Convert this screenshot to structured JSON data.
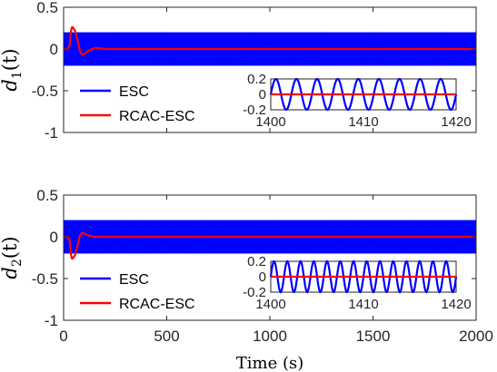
{
  "chart_data": [
    {
      "type": "line",
      "ylabel": "d",
      "ylabel_sub": "1",
      "ylabel_arg": "(t)",
      "xlabel": "",
      "xlim": [
        0,
        2000
      ],
      "ylim": [
        -1,
        0.5
      ],
      "xticks": [
        0,
        500,
        1000,
        1500,
        2000
      ],
      "yticks": [
        -1,
        -0.5,
        0,
        0.5
      ],
      "ytick_labels": [
        "-1",
        "-0.5",
        "0",
        "0.5"
      ],
      "grid": false,
      "legend_position": "lower-left",
      "series": [
        {
          "name": "ESC",
          "color": "#0000ff",
          "kind": "oscillation",
          "amplitude": 0.2,
          "offset": 0,
          "x_range": [
            0,
            2000
          ]
        },
        {
          "name": "RCAC-ESC",
          "color": "#ff0000",
          "kind": "transient",
          "x": [
            0,
            20,
            30,
            35,
            40,
            45,
            50,
            55,
            60,
            70,
            80,
            90,
            100,
            115,
            130,
            150,
            170,
            200,
            230,
            260,
            300,
            2000
          ],
          "y": [
            0,
            0,
            0.05,
            0.2,
            0.26,
            0.26,
            0.24,
            0.22,
            0.18,
            0.08,
            -0.03,
            -0.07,
            -0.06,
            -0.03,
            -0.01,
            0.01,
            0.01,
            0.0,
            0.0,
            0.0,
            0.0,
            0.0
          ]
        }
      ],
      "inset": {
        "xlim": [
          1400,
          1420
        ],
        "ylim": [
          -0.2,
          0.2
        ],
        "xticks": [
          1400,
          1410,
          1420
        ],
        "yticks": [
          0.2,
          0,
          -0.2
        ],
        "ytick_labels": [
          "0.2",
          "0",
          "-0.2"
        ],
        "esc_cycles": 9,
        "esc_amplitude": 0.2,
        "rcac_value": 0.0
      }
    },
    {
      "type": "line",
      "ylabel": "d",
      "ylabel_sub": "2",
      "ylabel_arg": "(t)",
      "xlabel": "Time (s)",
      "xlim": [
        0,
        2000
      ],
      "ylim": [
        -1,
        0.5
      ],
      "xticks": [
        0,
        500,
        1000,
        1500,
        2000
      ],
      "yticks": [
        -1,
        -0.5,
        0,
        0.5
      ],
      "ytick_labels": [
        "-1",
        "-0.5",
        "0",
        "0.5"
      ],
      "grid": false,
      "legend_position": "lower-left",
      "series": [
        {
          "name": "ESC",
          "color": "#0000ff",
          "kind": "oscillation",
          "amplitude": 0.2,
          "offset": 0,
          "x_range": [
            0,
            2000
          ]
        },
        {
          "name": "RCAC-ESC",
          "color": "#ff0000",
          "kind": "transient",
          "x": [
            0,
            20,
            30,
            35,
            40,
            45,
            50,
            55,
            60,
            70,
            80,
            90,
            100,
            115,
            130,
            150,
            170,
            200,
            230,
            260,
            300,
            2000
          ],
          "y": [
            0,
            0,
            -0.05,
            -0.2,
            -0.26,
            -0.26,
            -0.24,
            -0.22,
            -0.18,
            -0.08,
            0.02,
            0.05,
            0.04,
            0.02,
            0.01,
            0.0,
            0.0,
            0.0,
            0.0,
            0.0,
            0.0,
            0.0
          ]
        }
      ],
      "inset": {
        "xlim": [
          1400,
          1420
        ],
        "ylim": [
          -0.2,
          0.2
        ],
        "xticks": [
          1400,
          1410,
          1420
        ],
        "yticks": [
          0.2,
          0,
          -0.2
        ],
        "ytick_labels": [
          "0.2",
          "0",
          "-0.2"
        ],
        "esc_cycles": 14,
        "esc_amplitude": 0.2,
        "rcac_value": 0.0
      }
    }
  ]
}
